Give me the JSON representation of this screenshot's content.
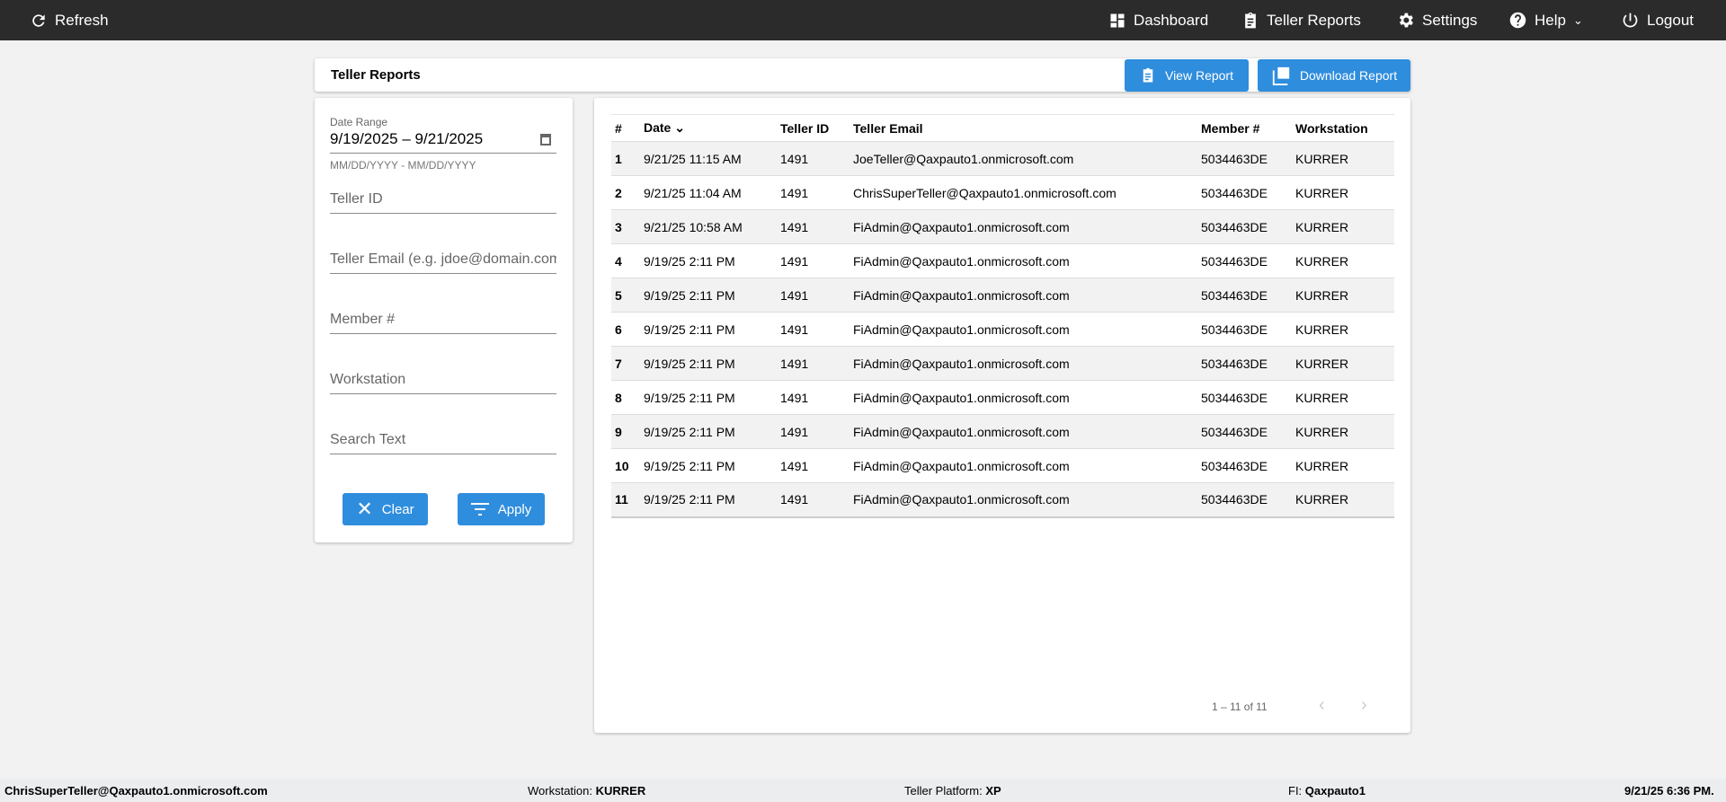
{
  "nav": {
    "refresh": "Refresh",
    "dashboard": "Dashboard",
    "teller_reports": "Teller Reports",
    "settings": "Settings",
    "help": "Help",
    "logout": "Logout"
  },
  "page": {
    "title": "Teller Reports",
    "view_report": "View Report",
    "download_report": "Download Report"
  },
  "filters": {
    "date_label": "Date Range",
    "date_value": "9/19/2025 – 9/21/2025",
    "date_hint": "MM/DD/YYYY - MM/DD/YYYY",
    "teller_id": "Teller ID",
    "teller_email": "Teller Email (e.g. jdoe@domain.com)",
    "member": "Member #",
    "workstation": "Workstation",
    "search": "Search Text",
    "clear": "Clear",
    "apply": "Apply"
  },
  "table": {
    "headers": [
      "#",
      "Date",
      "Teller ID",
      "Teller Email",
      "Member #",
      "Workstation"
    ],
    "rows": [
      [
        "1",
        "9/21/25 11:15 AM",
        "1491",
        "JoeTeller@Qaxpauto1.onmicrosoft.com",
        "5034463DE",
        "KURRER"
      ],
      [
        "2",
        "9/21/25 11:04 AM",
        "1491",
        "ChrisSuperTeller@Qaxpauto1.onmicrosoft.com",
        "5034463DE",
        "KURRER"
      ],
      [
        "3",
        "9/21/25 10:58 AM",
        "1491",
        "FiAdmin@Qaxpauto1.onmicrosoft.com",
        "5034463DE",
        "KURRER"
      ],
      [
        "4",
        "9/19/25 2:11 PM",
        "1491",
        "FiAdmin@Qaxpauto1.onmicrosoft.com",
        "5034463DE",
        "KURRER"
      ],
      [
        "5",
        "9/19/25 2:11 PM",
        "1491",
        "FiAdmin@Qaxpauto1.onmicrosoft.com",
        "5034463DE",
        "KURRER"
      ],
      [
        "6",
        "9/19/25 2:11 PM",
        "1491",
        "FiAdmin@Qaxpauto1.onmicrosoft.com",
        "5034463DE",
        "KURRER"
      ],
      [
        "7",
        "9/19/25 2:11 PM",
        "1491",
        "FiAdmin@Qaxpauto1.onmicrosoft.com",
        "5034463DE",
        "KURRER"
      ],
      [
        "8",
        "9/19/25 2:11 PM",
        "1491",
        "FiAdmin@Qaxpauto1.onmicrosoft.com",
        "5034463DE",
        "KURRER"
      ],
      [
        "9",
        "9/19/25 2:11 PM",
        "1491",
        "FiAdmin@Qaxpauto1.onmicrosoft.com",
        "5034463DE",
        "KURRER"
      ],
      [
        "10",
        "9/19/25 2:11 PM",
        "1491",
        "FiAdmin@Qaxpauto1.onmicrosoft.com",
        "5034463DE",
        "KURRER"
      ],
      [
        "11",
        "9/19/25 2:11 PM",
        "1491",
        "FiAdmin@Qaxpauto1.onmicrosoft.com",
        "5034463DE",
        "KURRER"
      ]
    ],
    "pagination": "1 – 11 of 11"
  },
  "footer": {
    "user": "ChrisSuperTeller@Qaxpauto1.onmicrosoft.com",
    "workstation_label": "Workstation: ",
    "workstation": "KURRER",
    "platform_label": "Teller Platform: ",
    "platform": "XP",
    "fi_label": "FI: ",
    "fi": "Qaxpauto1",
    "datetime": "9/21/25 6:36 PM."
  },
  "colors": {
    "accent": "#2f8ddd",
    "nav_bg": "#2b2b2b"
  }
}
